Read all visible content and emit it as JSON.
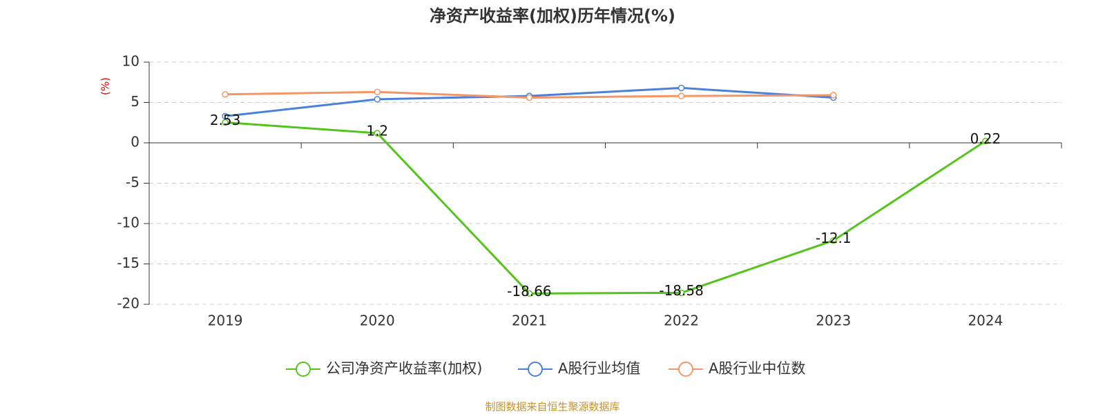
{
  "chart_data": {
    "type": "line",
    "title": "净资产收益率(加权)历年情况(%)",
    "y_label": "(%)",
    "source": "制图数据来自恒生聚源数据库",
    "categories": [
      "2019",
      "2020",
      "2021",
      "2022",
      "2023",
      "2024"
    ],
    "series": [
      {
        "name": "公司净资产收益率(加权)",
        "color": "#52c41a",
        "values": [
          2.53,
          1.2,
          -18.66,
          -18.58,
          -12.1,
          0.22
        ],
        "data_labels": true
      },
      {
        "name": "A股行业均值",
        "color": "#4a7fdc",
        "values": [
          3.3,
          5.4,
          5.8,
          6.8,
          5.6,
          null
        ]
      },
      {
        "name": "A股行业中位数",
        "color": "#f59566",
        "values": [
          6.0,
          6.3,
          5.6,
          5.8,
          5.9,
          null
        ]
      }
    ],
    "ylim": [
      -20,
      10
    ],
    "yticks": [
      10,
      5,
      0,
      -5,
      -10,
      -15,
      -20
    ],
    "grid": true
  }
}
